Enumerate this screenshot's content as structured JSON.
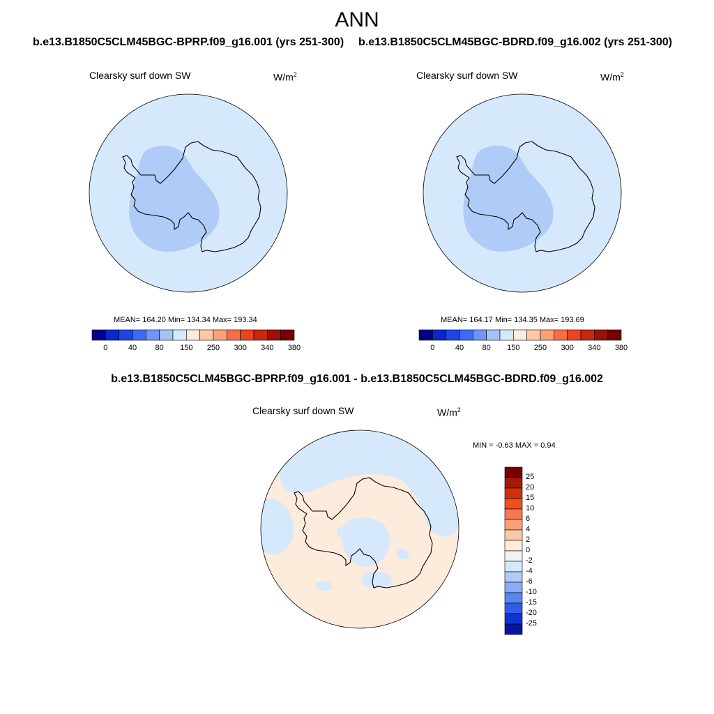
{
  "figure": {
    "title": "ANN",
    "case1": "b.e13.B1850C5CLM45BGC-BPRP.f09_g16.001 (yrs 251-300)",
    "case2": "b.e13.B1850C5CLM45BGC-BDRD.f09_g16.002 (yrs 251-300)",
    "diff_title": "b.e13.B1850C5CLM45BGC-BPRP.f09_g16.001 - b.e13.B1850C5CLM45BGC-BDRD.f09_g16.002"
  },
  "colors": {
    "land_fill": "#ffffff",
    "ocean_light": "#d6e8fb",
    "interior_blue": "#b0cbf7",
    "diff_pos": "#fdebdb",
    "diff_neg": "#d6e8fb",
    "coastline": "#000000"
  },
  "panels": [
    {
      "label": "Clearsky surf down SW",
      "units": "W/m",
      "units_sup": "2",
      "stats": "MEAN= 164.20  Min= 134.34  Max= 193.34"
    },
    {
      "label": "Clearsky surf down SW",
      "units": "W/m",
      "units_sup": "2",
      "stats": "MEAN= 164.17  Min= 134.35  Max= 193.69"
    },
    {
      "label": "Clearsky surf down SW",
      "units": "W/m",
      "units_sup": "2",
      "minmax": "MIN =  -0.63 MAX =   0.94"
    }
  ],
  "colorbar_main": {
    "ticks": [
      "0",
      "40",
      "80",
      "150",
      "250",
      "300",
      "340",
      "380"
    ],
    "colors": [
      "#00008b",
      "#0a28c8",
      "#1e46e6",
      "#3c6cf5",
      "#6e96f5",
      "#a4c4f7",
      "#d6e8fb",
      "#fdebdb",
      "#fcc8a6",
      "#fba07a",
      "#f76e46",
      "#ea4420",
      "#c82810",
      "#9a1206",
      "#780000"
    ]
  },
  "colorbar_diff": {
    "labels": [
      "25",
      "20",
      "15",
      "10",
      "6",
      "4",
      "2",
      "0",
      "-2",
      "-4",
      "-6",
      "-10",
      "-15",
      "-20",
      "-25"
    ],
    "colors": [
      "#780000",
      "#a81a08",
      "#d03010",
      "#f05020",
      "#f77850",
      "#f9a07a",
      "#fcc8a8",
      "#fdebdb",
      "#f2f2f2",
      "#d6e8fb",
      "#b0cbf7",
      "#88acf5",
      "#5a86f2",
      "#2e5ee8",
      "#1034d2",
      "#0a14a0"
    ]
  },
  "chart_data": {
    "type": "heatmap",
    "title": "ANN",
    "variable": "Clearsky surf down SW",
    "units": "W/m2",
    "panels": [
      {
        "case": "b.e13.B1850C5CLM45BGC-BPRP.f09_g16.001 (yrs 251-300)",
        "mean": 164.2,
        "min": 134.34,
        "max": 193.34
      },
      {
        "case": "b.e13.B1850C5CLM45BGC-BDRD.f09_g16.002 (yrs 251-300)",
        "mean": 164.17,
        "min": 134.35,
        "max": 193.69
      },
      {
        "case": "difference",
        "min": -0.63,
        "max": 0.94
      }
    ],
    "levels_main": [
      0,
      40,
      80,
      150,
      250,
      300,
      340,
      380
    ],
    "levels_diff": [
      -25,
      -20,
      -15,
      -10,
      -6,
      -4,
      -2,
      0,
      2,
      4,
      6,
      10,
      15,
      20,
      25
    ]
  }
}
